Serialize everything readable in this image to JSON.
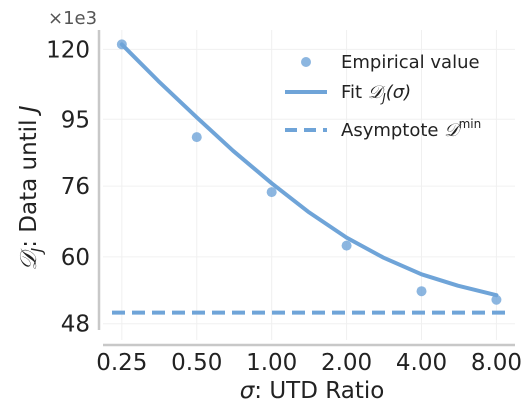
{
  "chart_data": {
    "type": "scatter",
    "x_label": "σ: UTD Ratio",
    "y_label": "𝒟J: Data until J",
    "y_multiplier": "×1e3",
    "x_scale": "log2",
    "y_scale": "log",
    "x_ticks": [
      0.25,
      0.5,
      1.0,
      2.0,
      4.0,
      8.0
    ],
    "x_tick_labels": [
      "0.25",
      "0.50",
      "1.00",
      "2.00",
      "4.00",
      "8.00"
    ],
    "y_ticks": [
      48,
      60,
      76,
      95,
      120
    ],
    "y_tick_labels": [
      "48",
      "60",
      "76",
      "95",
      "120"
    ],
    "xlim": [
      0.21,
      9.5
    ],
    "ylim": [
      47,
      128
    ],
    "grid": true,
    "legend_position": "top-right",
    "series": [
      {
        "name": "Empirical value",
        "kind": "scatter",
        "color": "#6fa4d8",
        "x": [
          0.25,
          0.5,
          1.0,
          2.0,
          4.0,
          8.0
        ],
        "y": [
          122,
          89.5,
          74.5,
          62.3,
          53.5,
          52.0
        ]
      },
      {
        "name": "Fit",
        "kind": "line",
        "color": "#6fa4d8",
        "x": [
          0.25,
          0.35,
          0.5,
          0.7,
          1.0,
          1.4,
          2.0,
          2.8,
          4.0,
          5.6,
          8.0
        ],
        "y": [
          122.0,
          108.0,
          95.6,
          85.5,
          76.7,
          69.8,
          64.0,
          59.9,
          56.6,
          54.5,
          52.8
        ]
      },
      {
        "name": "Asymptote",
        "kind": "hline",
        "color": "#6fa4d8",
        "y": 49.8
      }
    ]
  },
  "legend": {
    "empirical_label": "Empirical value",
    "fit_label_prefix": "Fit ",
    "fit_label_math": "𝒟",
    "fit_label_sub": "J",
    "fit_label_suffix": "(σ)",
    "asymptote_label_prefix": "Asymptote ",
    "asymptote_label_math": "𝒟",
    "asymptote_label_sup": "min"
  },
  "y_axis_title": {
    "math": "𝒟",
    "sub": "J",
    "rest": ": Data until ",
    "tail": "J"
  },
  "x_axis_title": {
    "math": "σ",
    "rest": ": UTD Ratio"
  }
}
